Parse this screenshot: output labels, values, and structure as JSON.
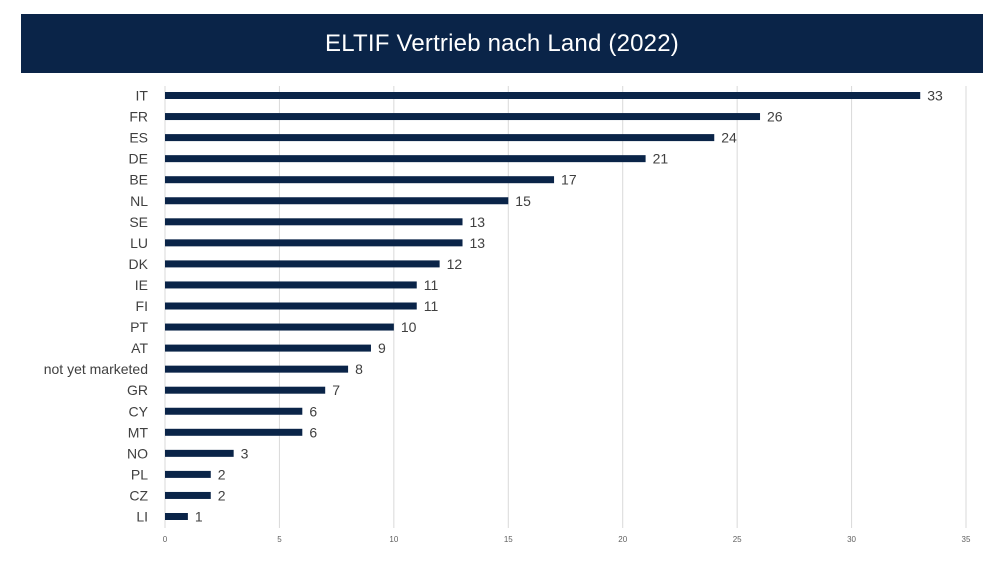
{
  "chart_data": {
    "type": "bar",
    "orientation": "horizontal",
    "title": "ELTIF Vertrieb nach Land (2022)",
    "categories": [
      "IT",
      "FR",
      "ES",
      "DE",
      "BE",
      "NL",
      "SE",
      "LU",
      "DK",
      "IE",
      "FI",
      "PT",
      "AT",
      "not yet marketed",
      "GR",
      "CY",
      "MT",
      "NO",
      "PL",
      "CZ",
      "LI"
    ],
    "values": [
      33,
      26,
      24,
      21,
      17,
      15,
      13,
      13,
      12,
      11,
      11,
      10,
      9,
      8,
      7,
      6,
      6,
      3,
      2,
      2,
      1
    ],
    "xlim": [
      0,
      35
    ],
    "xticks": [
      0,
      5,
      10,
      15,
      20,
      25,
      30,
      35
    ],
    "grid": true,
    "data_labels": true,
    "colors": {
      "bar": "#0a2448",
      "title_bg": "#0a2448",
      "title_text": "#ffffff",
      "grid": "#d9d9d9"
    }
  }
}
